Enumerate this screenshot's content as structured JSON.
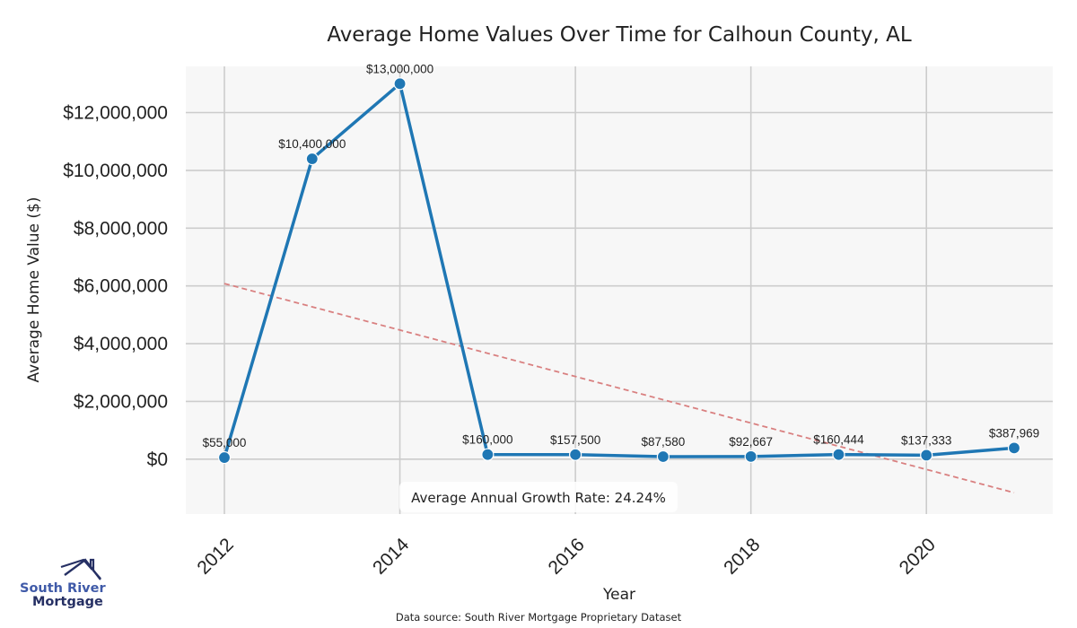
{
  "chart_data": {
    "type": "line",
    "title": "Average Home Values Over Time for Calhoun County, AL",
    "xlabel": "Year",
    "ylabel": "Average Home Value ($)",
    "x": [
      2012,
      2013,
      2014,
      2015,
      2016,
      2017,
      2018,
      2019,
      2020,
      2021
    ],
    "values": [
      55000,
      10400000,
      13000000,
      160000,
      157500,
      87580,
      92667,
      160444,
      137333,
      387969
    ],
    "data_labels": [
      "$55,000",
      "$10,400,000",
      "$13,000,000",
      "$160,000",
      "$157,500",
      "$87,580",
      "$92,667",
      "$160,444",
      "$137,333",
      "$387,969"
    ],
    "xlim": [
      2011.56,
      2021.44
    ],
    "ylim": [
      -1900000,
      13600000
    ],
    "x_ticks": [
      2012,
      2014,
      2016,
      2018,
      2020
    ],
    "x_tick_labels": [
      "2012",
      "2014",
      "2016",
      "2018",
      "2020"
    ],
    "y_ticks": [
      0,
      2000000,
      4000000,
      6000000,
      8000000,
      10000000,
      12000000
    ],
    "y_tick_labels": [
      "$0",
      "$2,000,000",
      "$4,000,000",
      "$6,000,000",
      "$8,000,000",
      "$10,000,000",
      "$12,000,000"
    ],
    "grid": true,
    "series_color": "#1f77b4",
    "trendline": {
      "x": [
        2012,
        2021
      ],
      "y": [
        6080000,
        -1160000
      ],
      "color": "#d98080",
      "style": "dashed"
    },
    "annotation": "Average Annual Growth Rate: 24.24%",
    "source": "Data source: South River Mortgage Proprietary Dataset"
  },
  "logo": {
    "line1": "South River",
    "line2": "Mortgage",
    "color_line1": "#3f5aa8",
    "color_line2": "#263064"
  },
  "colors": {
    "plot_background": "#f7f7f7",
    "grid": "#cccccc"
  }
}
